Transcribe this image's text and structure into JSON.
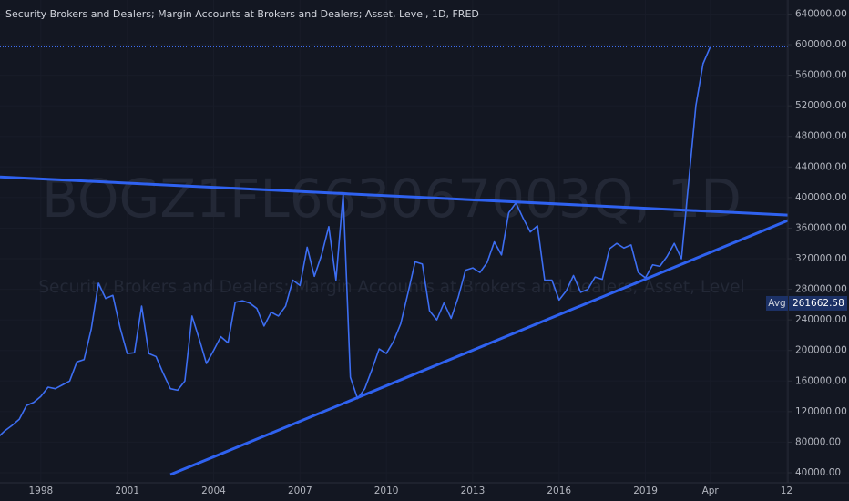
{
  "chart_data": {
    "type": "line",
    "title": "Security Brokers and Dealers; Margin Accounts at Brokers and Dealers; Asset, Level, 1D, FRED",
    "watermark": "BOGZ1FL663067003Q, 1D",
    "watermark_subtitle": "Security Brokers and Dealers; Margin Accounts at Brokers and Dealers; Asset, Level",
    "x": [
      1996.5,
      1996.75,
      1997,
      1997.25,
      1997.5,
      1997.75,
      1998,
      1998.25,
      1998.5,
      1998.75,
      1999,
      1999.25,
      1999.5,
      1999.75,
      2000,
      2000.25,
      2000.5,
      2000.75,
      2001,
      2001.25,
      2001.5,
      2001.75,
      2002,
      2002.25,
      2002.5,
      2002.75,
      2003,
      2003.25,
      2003.5,
      2003.75,
      2004,
      2004.25,
      2004.5,
      2004.75,
      2005,
      2005.25,
      2005.5,
      2005.75,
      2006,
      2006.25,
      2006.5,
      2006.75,
      2007,
      2007.25,
      2007.5,
      2007.75,
      2008,
      2008.25,
      2008.5,
      2008.75,
      2009,
      2009.25,
      2009.5,
      2009.75,
      2010,
      2010.25,
      2010.5,
      2010.75,
      2011,
      2011.25,
      2011.5,
      2011.75,
      2012,
      2012.25,
      2012.5,
      2012.75,
      2013,
      2013.25,
      2013.5,
      2013.75,
      2014,
      2014.25,
      2014.5,
      2014.75,
      2015,
      2015.25,
      2015.5,
      2015.75,
      2016,
      2016.25,
      2016.5,
      2016.75,
      2017,
      2017.25,
      2017.5,
      2017.75,
      2018,
      2018.25,
      2018.5,
      2018.75,
      2019,
      2019.25,
      2019.5,
      2019.75,
      2020,
      2020.25,
      2020.5,
      2020.75,
      2021,
      2021.25
    ],
    "series": [
      {
        "color": "#3d6ef2",
        "values": [
          86000,
          95000,
          102000,
          110000,
          128000,
          132000,
          140000,
          152000,
          150000,
          155000,
          160000,
          185000,
          188000,
          228000,
          288000,
          268000,
          272000,
          230000,
          196000,
          197000,
          258000,
          196000,
          192000,
          170000,
          150000,
          148000,
          160000,
          245000,
          215000,
          183000,
          200000,
          218000,
          210000,
          263000,
          265000,
          262000,
          255000,
          232000,
          250000,
          245000,
          258000,
          292000,
          285000,
          335000,
          297000,
          325000,
          362000,
          292000,
          405000,
          165000,
          137000,
          150000,
          175000,
          202000,
          196000,
          212000,
          235000,
          275000,
          316000,
          313000,
          252000,
          240000,
          262000,
          242000,
          270000,
          305000,
          308000,
          302000,
          315000,
          342000,
          325000,
          380000,
          393000,
          373000,
          355000,
          363000,
          292000,
          292000,
          266000,
          278000,
          298000,
          276000,
          280000,
          296000,
          293000,
          333000,
          340000,
          334000,
          338000,
          302000,
          295000,
          312000,
          310000,
          323000,
          340000,
          320000,
          420000,
          520000,
          575000,
          597000
        ]
      }
    ],
    "trendlines": [
      {
        "color": "#2f62f0",
        "x": [
          1996.58,
          2023.95
        ],
        "values": [
          427000,
          377000
        ]
      },
      {
        "color": "#2f62f0",
        "x": [
          2002.5,
          2023.95
        ],
        "values": [
          37600,
          370000
        ]
      }
    ],
    "average": {
      "label": "Avg",
      "value": 261662.58
    },
    "xlim": [
      1996.58,
      2023.95
    ],
    "ylim": [
      26900,
      658400
    ],
    "xticks": [
      1998,
      2001,
      2004,
      2007,
      2010,
      2013,
      2016,
      2019,
      {
        "value": 2021.25,
        "label": "Apr"
      },
      {
        "value": 2023.9,
        "label": "12"
      }
    ],
    "yticks": [
      {
        "value": 40000,
        "label": "40000.00"
      },
      {
        "value": 80000,
        "label": "80000.00"
      },
      {
        "value": 120000,
        "label": "120000.00"
      },
      {
        "value": 160000,
        "label": "160000.00"
      },
      {
        "value": 200000,
        "label": "200000.00"
      },
      {
        "value": 240000,
        "label": "240000.00"
      },
      {
        "value": 280000,
        "label": "280000.00"
      },
      {
        "value": 320000,
        "label": "320000.00"
      },
      {
        "value": 360000,
        "label": "360000.00"
      },
      {
        "value": 400000,
        "label": "400000.00"
      },
      {
        "value": 440000,
        "label": "440000.00"
      },
      {
        "value": 480000,
        "label": "480000.00"
      },
      {
        "value": 520000,
        "label": "520000.00"
      },
      {
        "value": 560000,
        "label": "560000.00"
      },
      {
        "value": 600000,
        "label": "600000.00"
      },
      {
        "value": 640000,
        "label": "640000.00"
      }
    ],
    "grid": true
  }
}
